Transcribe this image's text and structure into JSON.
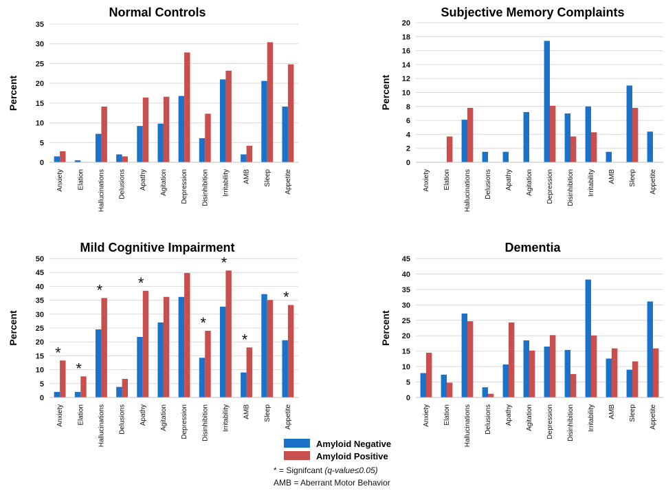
{
  "legend": {
    "negative": "Amyloid Negative",
    "positive": "Amyloid Positive"
  },
  "colors": {
    "negative": "#1a73c8",
    "positive": "#c94f4f"
  },
  "notes": {
    "sig_prefix": "* = Signifcant ",
    "sig_italic": "(q-value≤0.05)",
    "amb": "AMB = Aberrant Motor Behavior"
  },
  "chart_data": [
    {
      "type": "bar",
      "title": "Normal Controls",
      "ylabel": "Percent",
      "ylim": [
        0,
        35
      ],
      "yticks": [
        0,
        5,
        10,
        15,
        20,
        25,
        30,
        35
      ],
      "categories": [
        "Anxiety",
        "Elation",
        "Hallucinations",
        "Delusions",
        "Apathy",
        "Agitation",
        "Depression",
        "Disinhibition",
        "Irritability",
        "AMB",
        "Sleep",
        "Appetite"
      ],
      "series": [
        {
          "name": "Amyloid Negative",
          "values": [
            1.5,
            0.5,
            7.2,
            2.0,
            9.2,
            9.8,
            16.8,
            6.1,
            21.0,
            2.0,
            20.6,
            14.1
          ]
        },
        {
          "name": "Amyloid Positive",
          "values": [
            2.8,
            0,
            14.1,
            1.5,
            16.4,
            16.6,
            27.8,
            12.3,
            23.2,
            4.2,
            30.4,
            24.8
          ]
        }
      ],
      "significant": []
    },
    {
      "type": "bar",
      "title": "Subjective Memory Complaints",
      "ylabel": "Percent",
      "ylim": [
        0,
        20
      ],
      "yticks": [
        0,
        2,
        4,
        6,
        8,
        10,
        12,
        14,
        16,
        18,
        20
      ],
      "categories": [
        "Anxiety",
        "Elation",
        "Hallucinations",
        "Delusions",
        "Apathy",
        "Agitation",
        "Depression",
        "Disinhibition",
        "Irritability",
        "AMB",
        "Sleep",
        "Appetite"
      ],
      "series": [
        {
          "name": "Amyloid Negative",
          "values": [
            0,
            0,
            6.1,
            1.5,
            1.5,
            7.2,
            17.4,
            7.0,
            8.0,
            1.5,
            11.0,
            4.4
          ]
        },
        {
          "name": "Amyloid Positive",
          "values": [
            0,
            3.7,
            7.8,
            0,
            0,
            0,
            8.1,
            3.7,
            4.3,
            0,
            7.8,
            0
          ]
        }
      ],
      "significant": []
    },
    {
      "type": "bar",
      "title": "Mild Cognitive Impairment",
      "ylabel": "Percent",
      "ylim": [
        0,
        50
      ],
      "yticks": [
        0,
        5,
        10,
        15,
        20,
        25,
        30,
        35,
        40,
        45,
        50
      ],
      "categories": [
        "Anxiety",
        "Elation",
        "Hallucinations",
        "Delusions",
        "Apathy",
        "Agitation",
        "Depression",
        "Disinhibition",
        "Irritability",
        "AMB",
        "Sleep",
        "Appetite"
      ],
      "series": [
        {
          "name": "Amyloid Negative",
          "values": [
            2.0,
            2.0,
            24.5,
            3.8,
            21.8,
            27.0,
            36.2,
            14.3,
            32.7,
            9.0,
            37.2,
            20.6
          ]
        },
        {
          "name": "Amyloid Positive",
          "values": [
            13.3,
            7.6,
            35.8,
            6.7,
            38.4,
            36.2,
            44.8,
            24.0,
            45.7,
            18.0,
            35.1,
            33.3
          ]
        }
      ],
      "significant": [
        0,
        1,
        2,
        4,
        7,
        8,
        9,
        11
      ]
    },
    {
      "type": "bar",
      "title": "Dementia",
      "ylabel": "Percent",
      "ylim": [
        0,
        45
      ],
      "yticks": [
        0,
        5,
        10,
        15,
        20,
        25,
        30,
        35,
        40,
        45
      ],
      "categories": [
        "Anxiety",
        "Elation",
        "Hallucinations",
        "Delusions",
        "Apathy",
        "Agitation",
        "Depression",
        "Disinhibition",
        "Irritability",
        "AMB",
        "Sleep",
        "Appetite"
      ],
      "series": [
        {
          "name": "Amyloid Negative",
          "values": [
            7.9,
            7.4,
            27.2,
            3.3,
            10.7,
            18.5,
            16.5,
            15.4,
            38.2,
            12.6,
            9.0,
            31.1
          ]
        },
        {
          "name": "Amyloid Positive",
          "values": [
            14.5,
            4.8,
            24.7,
            1.2,
            24.3,
            15.2,
            20.2,
            7.6,
            20.1,
            15.9,
            11.7,
            15.9
          ]
        }
      ],
      "significant": []
    }
  ]
}
